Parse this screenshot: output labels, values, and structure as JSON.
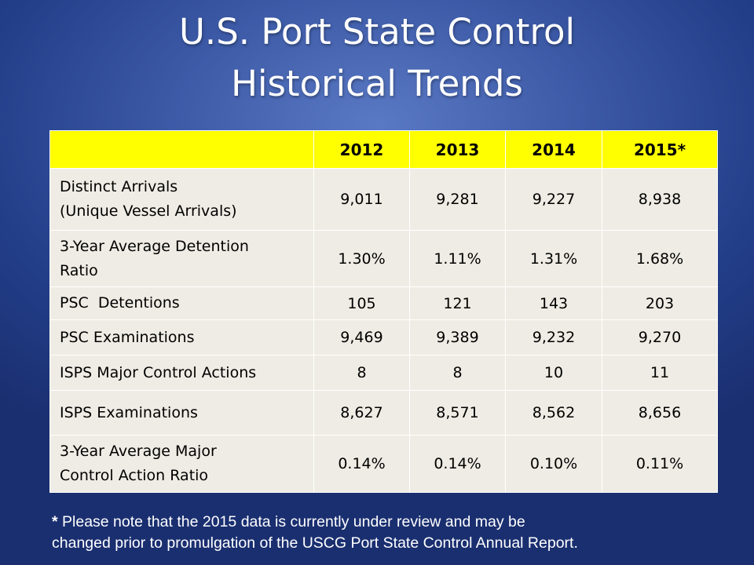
{
  "title": {
    "line1": "U.S. Port State Control",
    "line2": "Historical Trends"
  },
  "table": {
    "headers": [
      "",
      "2012",
      "2013",
      "2014",
      "2015*"
    ],
    "rows": [
      {
        "label_line1": "Distinct Arrivals",
        "label_line2": "(Unique Vessel Arrivals)",
        "values": [
          "9,011",
          "9,281",
          "9,227",
          "8,938"
        ]
      },
      {
        "label_line1": "3-Year Average Detention",
        "label_line2": "Ratio",
        "values": [
          "1.30%",
          "1.11%",
          "1.31%",
          "1.68%"
        ]
      },
      {
        "label_line1": "PSC  Detentions",
        "label_line2": "",
        "values": [
          "105",
          "121",
          "143",
          "203"
        ]
      },
      {
        "label_line1": "PSC Examinations",
        "label_line2": "",
        "values": [
          "9,469",
          "9,389",
          "9,232",
          "9,270"
        ]
      },
      {
        "label_line1": "ISPS Major Control Actions",
        "label_line2": "",
        "values": [
          "8",
          "8",
          "10",
          "11"
        ]
      },
      {
        "label_line1": "ISPS Examinations",
        "label_line2": "",
        "values": [
          "8,627",
          "8,571",
          "8,562",
          "8,656"
        ]
      },
      {
        "label_line1": "3-Year Average Major",
        "label_line2": "Control Action Ratio",
        "values": [
          "0.14%",
          "0.14%",
          "0.10%",
          "0.11%"
        ]
      }
    ]
  },
  "footnote": {
    "star": "*",
    "line1": " Please note that the 2015 data is currently under review and may be",
    "line2": "changed prior to promulgation of the USCG Port State Control Annual Report."
  },
  "colors": {
    "header_bg": "#ffff00",
    "cell_bg": "#eeece4",
    "background": "#3e5ba8",
    "title_text": "#ffffff"
  }
}
